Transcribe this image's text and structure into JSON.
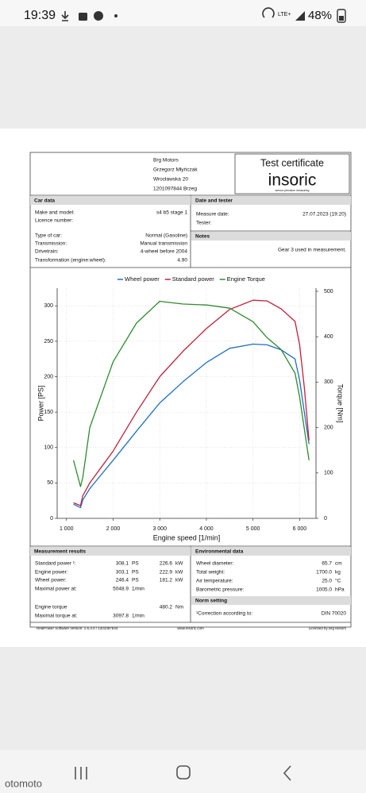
{
  "status": {
    "time": "19:39",
    "network": "LTE+",
    "battery": "48%"
  },
  "header": {
    "company": [
      "Brg Motors",
      "Grzegorz Młyńczak",
      "Wrocławska 20",
      "1201097844 Brzeg"
    ],
    "cert_title": "Test certificate",
    "brand": "insoric",
    "tagline": "sensor precision measuring"
  },
  "car_data": {
    "title": "Car data",
    "rows": [
      {
        "label": "Make and model:",
        "value": "s4 b5 stage 1"
      },
      {
        "label": "Licence number:"
      },
      {
        "label": "Type of car:",
        "value": "Normal (Gasoline)"
      },
      {
        "label": "Transmission:",
        "value": "Manual transmission"
      },
      {
        "label": "Drivetrain:",
        "value": "4-wheel before 2004"
      },
      {
        "label": "Transformation (engine:wheel):",
        "value": "4.90"
      }
    ]
  },
  "date_tester": {
    "title": "Date and tester",
    "rows": [
      {
        "label": "Measure date:",
        "value": "27.07.2023 (19:20)"
      },
      {
        "label": "Tester:"
      }
    ]
  },
  "notes": {
    "title": "Notes",
    "text": "Gear 3 used in measurement."
  },
  "chart_data": {
    "type": "line",
    "x_label": "Engine speed [1/min]",
    "y_label": "Power [PS]",
    "y2_label": "Torque [Nm]",
    "x": [
      1150,
      1300,
      1350,
      1500,
      2000,
      2500,
      3000,
      3500,
      4000,
      4500,
      5000,
      5300,
      5600,
      5900,
      6000,
      6100,
      6200
    ],
    "series": [
      {
        "name": "Wheel power",
        "color": "#1f6fbf",
        "values": [
          20,
          15,
          26,
          42,
          82,
          123,
          163,
          193,
          220,
          240,
          246,
          245,
          238,
          225,
          195,
          150,
          105
        ]
      },
      {
        "name": "Standard power",
        "color": "#c0213a",
        "values": [
          22,
          18,
          32,
          50,
          95,
          150,
          200,
          236,
          268,
          295,
          308,
          307,
          296,
          278,
          245,
          185,
          110
        ]
      },
      {
        "name": "Engine Torque",
        "color": "#2e8b2e",
        "axis": "y2",
        "values": [
          128,
          70,
          90,
          200,
          345,
          430,
          478,
          472,
          470,
          463,
          433,
          398,
          372,
          320,
          267,
          197,
          128
        ]
      }
    ],
    "xlim": [
      800,
      6350
    ],
    "xticks": [
      {
        "value": 1000,
        "label": "1 000"
      },
      {
        "value": 2000,
        "label": "2 000"
      },
      {
        "value": 3000,
        "label": "3 000"
      },
      {
        "value": 4000,
        "label": "4 000"
      },
      {
        "value": 5000,
        "label": "5 000"
      },
      {
        "value": 6000,
        "label": "6 000"
      }
    ],
    "ylim": [
      0,
      325
    ],
    "yticks": [
      0,
      50,
      100,
      150,
      200,
      250,
      300
    ],
    "y2lim": [
      0,
      507
    ],
    "y2ticks": [
      0,
      100,
      200,
      300,
      400,
      500
    ],
    "grid": true,
    "legend": "top"
  },
  "results": {
    "title": "Measurement results",
    "rows": [
      {
        "label": "Standard power ¹:",
        "value": "308.1",
        "unit": "PS",
        "value2": "226.6",
        "unit2": "kW",
        "color": "#c0213a"
      },
      {
        "label": "Engine power:",
        "value": "303.1",
        "unit": "PS",
        "value2": "222.9",
        "unit2": "kW",
        "color": "#c0213a"
      },
      {
        "label": "Wheel power:",
        "value": "246.4",
        "unit": "PS",
        "value2": "181.2",
        "unit2": "kW",
        "color": "#1f6fbf"
      },
      {
        "label": "Maximal power at:",
        "value": "5048.9",
        "unit": "1/min",
        "color": "#111111"
      },
      {
        "label": "Engine torque",
        "value2": "480.2",
        "unit2": "Nm",
        "color": "#2e8b2e"
      },
      {
        "label": "Maximal torque at:",
        "value": "3097.8",
        "unit": "1/min",
        "color": "#111111"
      }
    ]
  },
  "environment": {
    "title": "Environmental data",
    "rows": [
      {
        "label": "Wheel diameter:",
        "value": "65.7",
        "unit": "cm"
      },
      {
        "label": "Total weight:",
        "value": "1700.0",
        "unit": "kg"
      },
      {
        "label": "Air temperature:",
        "value": "25.0",
        "unit": "°C"
      },
      {
        "label": "Barometric pressure:",
        "value": "1005.0",
        "unit": "hPa"
      }
    ]
  },
  "norm": {
    "title": "Norm setting",
    "label": "¹Correction according to:",
    "value": "DIN 70020"
  },
  "footer": [
    "RealPower Software Version: 1.6.3.0 / 1201097844",
    "www.insoric.com",
    "Licensed by Brg Motors"
  ],
  "watermark": "otomoto"
}
